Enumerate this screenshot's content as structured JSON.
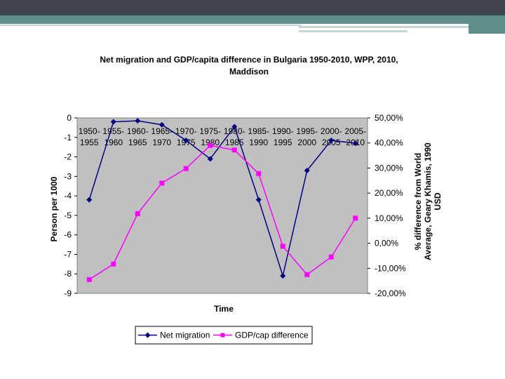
{
  "slide": {
    "accent_dark": "#3f4450",
    "accent_teal": "#5f8f8c",
    "accent_light": "#c7d5d4"
  },
  "chart_data": {
    "type": "line",
    "title_line1": "Net migration and GDP/capita difference in Bulgaria 1950-2010, WPP, 2010,",
    "title_line2": "Maddison",
    "xlabel": "Time",
    "ylabel_left": "Person per 1000",
    "ylabel_right_lines": [
      "% difference from World",
      "Average, Geary Khamis, 1990",
      "USD"
    ],
    "categories": [
      [
        "1950-",
        "1955"
      ],
      [
        "1955-",
        "1960"
      ],
      [
        "1960-",
        "1965"
      ],
      [
        "1965-",
        "1970"
      ],
      [
        "1970-",
        "1975"
      ],
      [
        "1975-",
        "1980"
      ],
      [
        "1980-",
        "1985"
      ],
      [
        "1985-",
        "1990"
      ],
      [
        "1990-",
        "1995"
      ],
      [
        "1995-",
        "2000"
      ],
      [
        "2000-",
        "2005"
      ],
      [
        "2005-",
        "2010"
      ]
    ],
    "ylim_left": [
      -9,
      0
    ],
    "yticks_left": [
      "0",
      "-1",
      "-2",
      "-3",
      "-4",
      "-5",
      "-6",
      "-7",
      "-8",
      "-9"
    ],
    "ylim_right": [
      -20,
      50
    ],
    "yticks_right": [
      "50,00%",
      "40,00%",
      "30,00%",
      "20,00%",
      "10,00%",
      "0,00%",
      "-10,00%",
      "-20,00%"
    ],
    "plot_background": "#c0c0c0",
    "series": [
      {
        "name": "Net migration",
        "axis": "left",
        "color": "#000080",
        "marker": "diamond",
        "values": [
          -4.2,
          -0.2,
          -0.15,
          -0.35,
          -1.15,
          -2.1,
          -0.45,
          -4.2,
          -8.1,
          -2.7,
          -1.15,
          -1.3
        ]
      },
      {
        "name": "GDP/cap difference",
        "axis": "right",
        "color": "#ff00ff",
        "marker": "square",
        "values": [
          -14.5,
          -8.3,
          11.8,
          24.0,
          29.8,
          39.0,
          37.2,
          27.8,
          -1.2,
          -12.5,
          -5.5,
          10.0
        ]
      }
    ],
    "legend_position": "bottom"
  }
}
